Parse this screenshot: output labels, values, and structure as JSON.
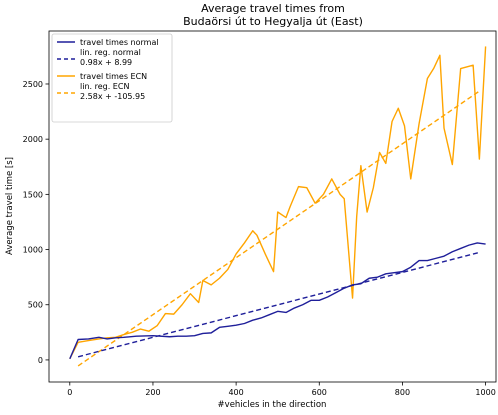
{
  "chart_data": {
    "type": "line",
    "title_line1": "Average travel times from",
    "title_line2": "Budaörsi út to Hegyalja út (East)",
    "xlabel": "#vehicles in the direction",
    "ylabel": "Average travel time [s]",
    "xlim": [
      -50,
      1025
    ],
    "ylim": [
      -200,
      2980
    ],
    "x_ticks": [
      0,
      200,
      400,
      600,
      800,
      1000
    ],
    "y_ticks": [
      0,
      500,
      1000,
      1500,
      2000,
      2500
    ],
    "grid": false,
    "legend_position": "top-left",
    "colors": {
      "normal": "#1f1f9a",
      "ecn": "#ffa500"
    },
    "series": [
      {
        "name": "travel times normal",
        "style": "solid",
        "color": "#1f1f9a",
        "x": [
          0,
          20,
          45,
          70,
          90,
          110,
          130,
          160,
          200,
          240,
          260,
          280,
          300,
          320,
          340,
          360,
          380,
          400,
          420,
          440,
          460,
          480,
          500,
          520,
          540,
          560,
          580,
          600,
          620,
          640,
          660,
          680,
          700,
          720,
          740,
          760,
          780,
          800,
          820,
          840,
          860,
          880,
          900,
          920,
          940,
          960,
          980,
          1000
        ],
        "y": [
          10,
          185,
          190,
          205,
          190,
          200,
          205,
          215,
          220,
          210,
          215,
          215,
          220,
          240,
          245,
          295,
          305,
          315,
          330,
          360,
          380,
          410,
          440,
          430,
          470,
          500,
          540,
          540,
          570,
          610,
          650,
          680,
          690,
          740,
          750,
          780,
          790,
          800,
          840,
          900,
          900,
          920,
          940,
          980,
          1010,
          1040,
          1060,
          1050
        ]
      },
      {
        "name": "lin. reg. normal",
        "label_line2": "0.98x + 8.99",
        "style": "dashed",
        "color": "#1f1f9a",
        "x": [
          20,
          985
        ],
        "y": [
          28.59,
          974.29
        ]
      },
      {
        "name": "travel times ECN",
        "style": "solid",
        "color": "#ffa500",
        "x": [
          0,
          20,
          45,
          70,
          90,
          110,
          130,
          150,
          170,
          190,
          210,
          230,
          250,
          270,
          290,
          310,
          320,
          340,
          360,
          380,
          400,
          420,
          440,
          450,
          470,
          480,
          490,
          500,
          520,
          530,
          550,
          570,
          590,
          610,
          630,
          650,
          660,
          680,
          690,
          700,
          715,
          730,
          745,
          760,
          775,
          790,
          805,
          820,
          840,
          860,
          875,
          890,
          900,
          920,
          940,
          960,
          970,
          985,
          1000
        ],
        "y": [
          10,
          160,
          175,
          190,
          200,
          205,
          230,
          250,
          280,
          260,
          310,
          420,
          415,
          500,
          600,
          520,
          720,
          680,
          740,
          820,
          960,
          1060,
          1170,
          1130,
          960,
          880,
          800,
          1340,
          1290,
          1390,
          1570,
          1560,
          1420,
          1500,
          1640,
          1500,
          1460,
          560,
          1300,
          1760,
          1340,
          1560,
          1880,
          1780,
          2160,
          2280,
          2120,
          1640,
          2140,
          2550,
          2640,
          2760,
          2100,
          1770,
          2640,
          2660,
          2670,
          1820,
          2840
        ]
      },
      {
        "name": "lin. reg. ECN",
        "label_line2": "2.58x + -105.95",
        "style": "dashed",
        "color": "#ffa500",
        "x": [
          20,
          985
        ],
        "y": [
          -54.35,
          2435.35
        ]
      }
    ]
  }
}
